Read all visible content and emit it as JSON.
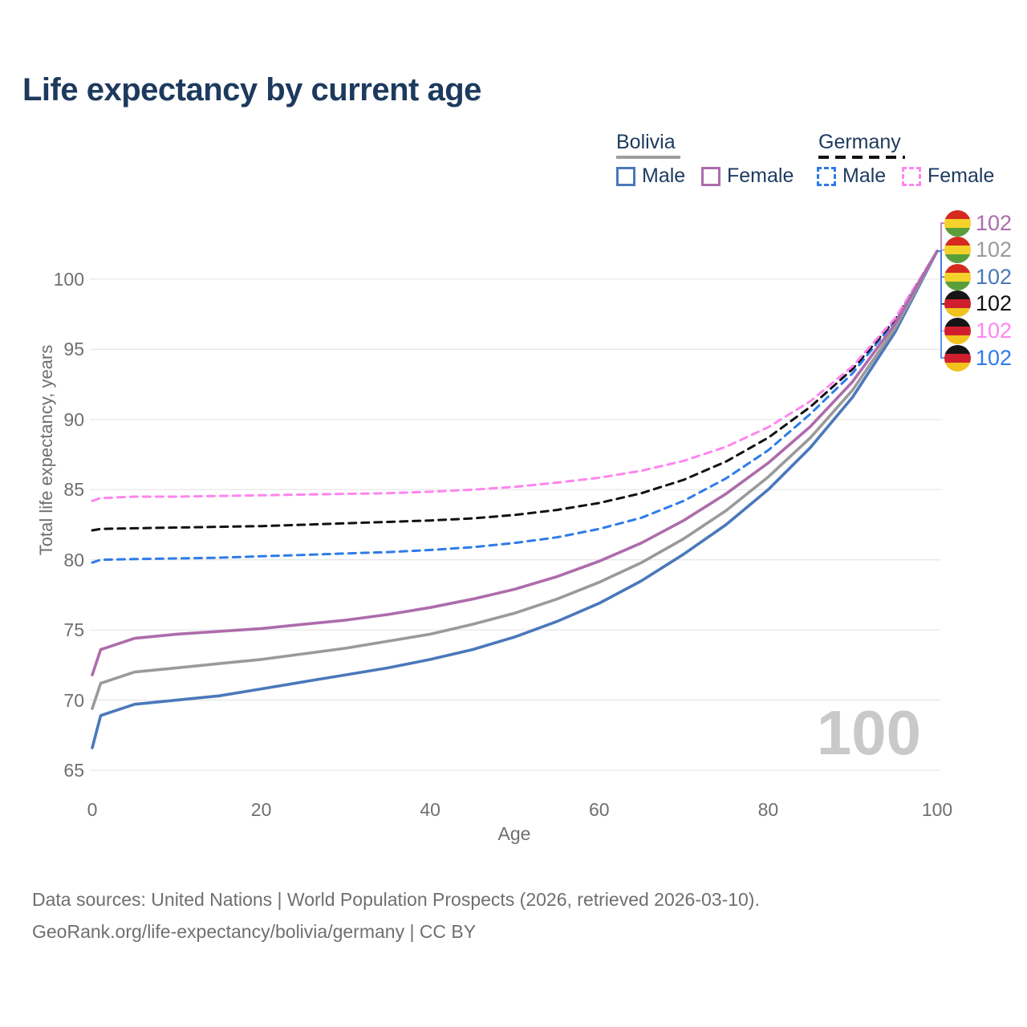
{
  "title": "Life expectancy by current age",
  "legend": {
    "bolivia": {
      "country_label": "Bolivia",
      "underline_color": "#9e9e9e",
      "underline_style": "solid",
      "items": [
        {
          "label": "Male",
          "color": "#4a78bb",
          "dashed": false
        },
        {
          "label": "Female",
          "color": "#ad6cab",
          "dashed": false
        }
      ]
    },
    "germany": {
      "country_label": "Germany",
      "underline_color": "#111111",
      "underline_style": "dashed",
      "items": [
        {
          "label": "Male",
          "color": "#2f7bea",
          "dashed": true
        },
        {
          "label": "Female",
          "color": "#ff85f0",
          "dashed": true
        }
      ]
    }
  },
  "axes": {
    "x": {
      "label": "Age",
      "ticks": [
        0,
        20,
        40,
        60,
        80,
        100
      ],
      "range": [
        0,
        100
      ]
    },
    "y": {
      "label": "Total life expectancy, years",
      "ticks": [
        65,
        70,
        75,
        80,
        85,
        90,
        95,
        100
      ],
      "range": [
        65,
        103.5
      ]
    }
  },
  "chart_data": {
    "type": "line",
    "title": "Life expectancy by current age",
    "xlabel": "Age",
    "ylabel": "Total life expectancy, years",
    "xlim": [
      0,
      100
    ],
    "ylim": [
      65,
      103.5
    ],
    "grid": "horizontal",
    "x": [
      0,
      1,
      5,
      10,
      15,
      20,
      25,
      30,
      35,
      40,
      45,
      50,
      55,
      60,
      65,
      70,
      75,
      80,
      85,
      90,
      95,
      100
    ],
    "series": [
      {
        "id": "germany-male",
        "name": "Germany Male",
        "color": "#2f7bea",
        "dashed": true,
        "values": [
          79.8,
          80.0,
          80.05,
          80.1,
          80.15,
          80.25,
          80.35,
          80.45,
          80.55,
          80.7,
          80.9,
          81.2,
          81.6,
          82.2,
          83.0,
          84.2,
          85.8,
          87.8,
          90.4,
          93.3,
          97.0,
          102
        ]
      },
      {
        "id": "germany-both",
        "name": "Germany Both sexes",
        "color": "#111111",
        "dashed": true,
        "values": [
          82.1,
          82.2,
          82.25,
          82.3,
          82.35,
          82.4,
          82.5,
          82.6,
          82.7,
          82.8,
          82.95,
          83.2,
          83.55,
          84.05,
          84.75,
          85.7,
          87.0,
          88.7,
          90.9,
          93.6,
          97.1,
          102
        ]
      },
      {
        "id": "germany-female",
        "name": "Germany Female",
        "color": "#ff85f0",
        "dashed": true,
        "values": [
          84.2,
          84.4,
          84.5,
          84.5,
          84.55,
          84.6,
          84.65,
          84.7,
          84.75,
          84.85,
          85.0,
          85.2,
          85.5,
          85.85,
          86.35,
          87.05,
          88.05,
          89.45,
          91.3,
          93.8,
          97.2,
          102
        ]
      },
      {
        "id": "bolivia-male",
        "name": "Bolivia Male",
        "color": "#4a78bb",
        "dashed": false,
        "values": [
          66.6,
          68.9,
          69.7,
          70.0,
          70.3,
          70.8,
          71.3,
          71.8,
          72.3,
          72.9,
          73.6,
          74.5,
          75.6,
          76.9,
          78.5,
          80.4,
          82.5,
          85.0,
          88.0,
          91.6,
          96.2,
          102
        ]
      },
      {
        "id": "bolivia-both",
        "name": "Bolivia Both sexes",
        "color": "#9a9a9a",
        "dashed": false,
        "values": [
          69.4,
          71.2,
          72.0,
          72.3,
          72.6,
          72.9,
          73.3,
          73.7,
          74.2,
          74.7,
          75.4,
          76.2,
          77.2,
          78.4,
          79.8,
          81.5,
          83.5,
          85.9,
          88.7,
          92.1,
          96.5,
          102
        ]
      },
      {
        "id": "bolivia-female",
        "name": "Bolivia Female",
        "color": "#ad6cab",
        "dashed": false,
        "values": [
          71.8,
          73.6,
          74.4,
          74.7,
          74.9,
          75.1,
          75.4,
          75.7,
          76.1,
          76.6,
          77.2,
          77.9,
          78.8,
          79.9,
          81.2,
          82.8,
          84.7,
          86.9,
          89.5,
          92.7,
          96.8,
          102
        ]
      }
    ],
    "legend_position": "top-right",
    "annotations": {
      "age_watermark": "100"
    }
  },
  "end_labels": [
    {
      "series": "bolivia-female",
      "flag": "bolivia",
      "value": "102",
      "color": "#ad6cab"
    },
    {
      "series": "bolivia-both",
      "flag": "bolivia",
      "value": "102",
      "color": "#9a9a9a"
    },
    {
      "series": "bolivia-male",
      "flag": "bolivia",
      "value": "102",
      "color": "#4a78bb"
    },
    {
      "series": "germany-both",
      "flag": "germany",
      "value": "102",
      "color": "#111111"
    },
    {
      "series": "germany-female",
      "flag": "germany",
      "value": "102",
      "color": "#ff85f0"
    },
    {
      "series": "germany-male",
      "flag": "germany",
      "value": "102",
      "color": "#2f7bea"
    }
  ],
  "flags": {
    "bolivia": [
      "#d52b1e",
      "#f4d22b",
      "#5a9e3c"
    ],
    "germany": [
      "#151515",
      "#cf1f2e",
      "#f2c21d"
    ]
  },
  "watermark": "100",
  "footer": {
    "line1": "Data sources: United Nations | World Population Prospects (2026, retrieved 2026-03-10).",
    "line2": "GeoRank.org/life-expectancy/bolivia/germany | CC BY"
  },
  "colors": {
    "title_text": "#1d3a5e",
    "axis_text": "#6f6f6f",
    "gridline": "#e7e7e7",
    "watermark": "#c9c9c9"
  }
}
